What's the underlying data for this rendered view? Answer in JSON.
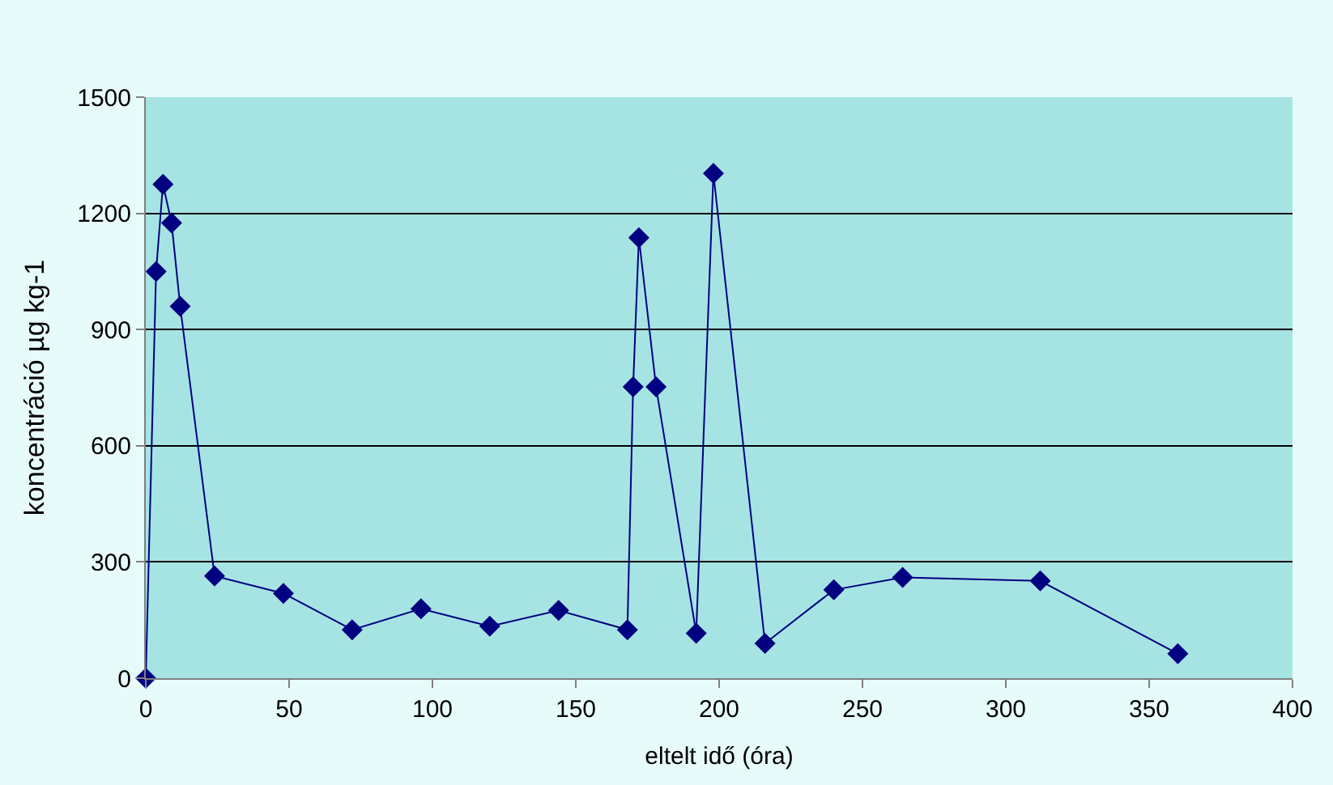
{
  "chart_data": {
    "type": "line",
    "xlabel": "eltelt idő (óra)",
    "ylabel": "koncentráció µg kg-1",
    "x": [
      0,
      3.6,
      6,
      9,
      12,
      24,
      48,
      72,
      96,
      120,
      144,
      168,
      170,
      172,
      178,
      192,
      198,
      216,
      240,
      264,
      312,
      360
    ],
    "series": [
      {
        "color": "#000080",
        "values": [
          0,
          1050,
          1275,
          1175,
          960,
          264,
          219,
          125,
          179,
          134,
          175,
          125,
          752,
          1137,
          752,
          116,
          1303,
          90,
          228,
          260,
          251,
          63
        ]
      }
    ],
    "xlim": [
      0,
      400
    ],
    "xticks": [
      0,
      50,
      100,
      150,
      200,
      250,
      300,
      350,
      400
    ],
    "ylim": [
      0,
      1500
    ],
    "yticks": [
      0,
      300,
      600,
      900,
      1200,
      1500
    ],
    "grid": "y",
    "marker": "diamond",
    "line_style": "solid",
    "legend": false
  }
}
